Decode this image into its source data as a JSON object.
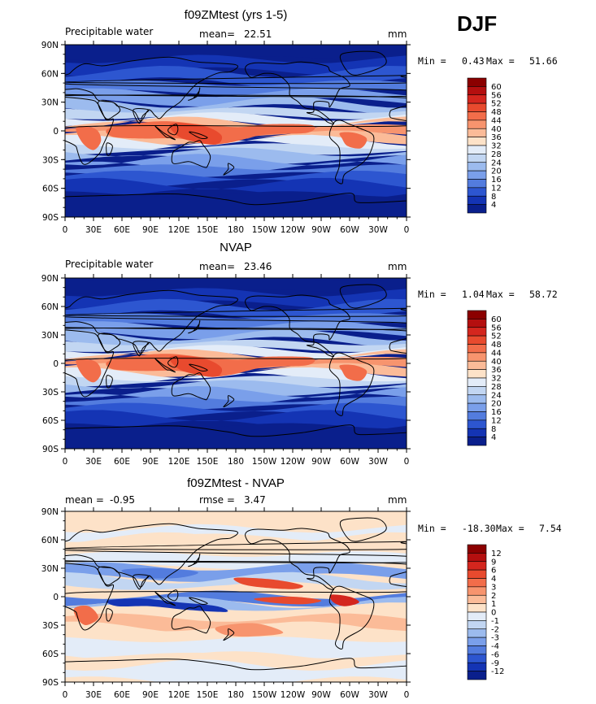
{
  "season": "DJF",
  "units_label": "mm",
  "panels": [
    {
      "title": "f09ZMtest (yrs 1-5)",
      "left_label": "Precipitable water",
      "stat_label": "mean=",
      "stat_value": "22.51",
      "min_label": "Min =",
      "min_value": "0.43",
      "max_label": "Max =",
      "max_value": "51.66",
      "scale": "abs"
    },
    {
      "title": "NVAP",
      "left_label": "Precipitable water",
      "stat_label": "mean=",
      "stat_value": "23.46",
      "min_label": "Min =",
      "min_value": "1.04",
      "max_label": "Max =",
      "max_value": "58.72",
      "scale": "abs"
    },
    {
      "title": "f09ZMtest - NVAP",
      "left_label": "mean =",
      "left_value": "-0.95",
      "stat_label": "rmse =",
      "stat_value": "3.47",
      "min_label": "Min =",
      "min_value": "-18.30",
      "max_label": "Max =",
      "max_value": "7.54",
      "scale": "diff"
    }
  ],
  "lat_ticks": [
    "90N",
    "60N",
    "30N",
    "0",
    "30S",
    "60S",
    "90S"
  ],
  "lon_ticks": [
    "0",
    "30E",
    "60E",
    "90E",
    "120E",
    "150E",
    "180",
    "150W",
    "120W",
    "90W",
    "60W",
    "30W",
    "0"
  ],
  "colorbars": {
    "abs": {
      "labels": [
        "60",
        "56",
        "52",
        "48",
        "44",
        "40",
        "36",
        "32",
        "28",
        "24",
        "20",
        "16",
        "12",
        "8",
        "4"
      ],
      "colors": [
        "#8b0000",
        "#b40f0f",
        "#d4261e",
        "#e84a2e",
        "#f26d4a",
        "#f7946e",
        "#fbbb98",
        "#fde2c8",
        "#e3ecf8",
        "#c2d6f2",
        "#9cbbee",
        "#7a9fea",
        "#537cde",
        "#2d56d0",
        "#1434b4",
        "#0a1f8c"
      ]
    },
    "diff": {
      "labels": [
        "12",
        "9",
        "6",
        "4",
        "3",
        "2",
        "1",
        "0",
        "-1",
        "-2",
        "-3",
        "-4",
        "-6",
        "-9",
        "-12"
      ],
      "colors": [
        "#8b0000",
        "#b40f0f",
        "#d4261e",
        "#e84a2e",
        "#f26d4a",
        "#f7946e",
        "#fbbb98",
        "#fde2c8",
        "#e3ecf8",
        "#c2d6f2",
        "#9cbbee",
        "#7a9fea",
        "#537cde",
        "#2d56d0",
        "#1434b4",
        "#0a1f8c"
      ]
    }
  },
  "colors": {
    "ocean_dark": "#0a1f8c",
    "neutral_light": "#fde2c8",
    "coast": "#000000"
  }
}
